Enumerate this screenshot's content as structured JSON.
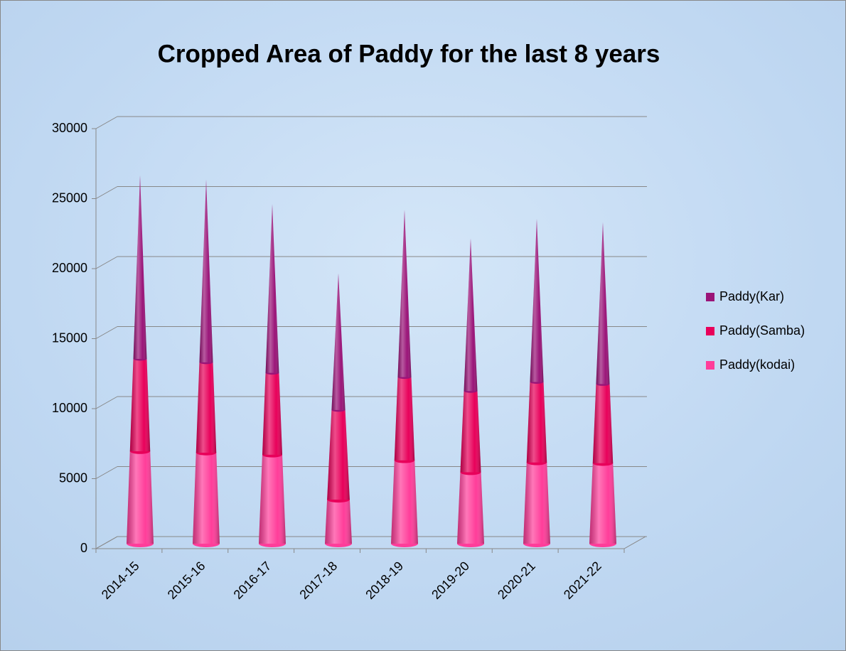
{
  "chart_data": {
    "type": "cone",
    "title": "Cropped Area of Paddy for the last 8 years",
    "categories": [
      "2014-15",
      "2015-16",
      "2016-17",
      "2017-18",
      "2018-19",
      "2019-20",
      "2020-21",
      "2021-22"
    ],
    "series": [
      {
        "name": "Paddy(kodai)",
        "color": "#ff3d9a",
        "values": [
          6600,
          6500,
          6350,
          3150,
          5950,
          5100,
          5800,
          5750
        ]
      },
      {
        "name": "Paddy(Samba)",
        "color": "#e8005a",
        "values": [
          6600,
          6450,
          5850,
          6400,
          5950,
          5800,
          5750,
          5650
        ]
      },
      {
        "name": "Paddy(Kar)",
        "color": "#9a1478",
        "values": [
          13100,
          13050,
          12050,
          9750,
          11950,
          10900,
          11650,
          11550
        ]
      }
    ],
    "stacked": true,
    "ylim": [
      0,
      30000
    ],
    "yticks": [
      0,
      5000,
      10000,
      15000,
      20000,
      25000,
      30000
    ],
    "grid": true,
    "legend": "right"
  }
}
